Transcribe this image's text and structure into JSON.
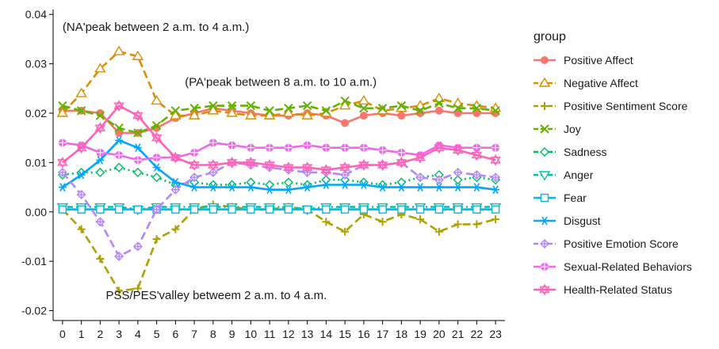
{
  "chart_data": {
    "type": "line",
    "title": "",
    "xlabel": "",
    "ylabel": "",
    "x": [
      0,
      1,
      2,
      3,
      4,
      5,
      6,
      7,
      8,
      9,
      10,
      11,
      12,
      13,
      14,
      15,
      16,
      17,
      18,
      19,
      20,
      21,
      22,
      23
    ],
    "ylim": [
      -0.022,
      0.041
    ],
    "yticks": [
      -0.02,
      -0.01,
      0.0,
      0.01,
      0.02,
      0.03,
      0.04
    ],
    "ytick_labels": [
      "-0.02",
      "-0.01",
      "0.00",
      "0.01",
      "0.02",
      "0.03",
      "0.04"
    ],
    "grid": false,
    "legend_title": "group",
    "legend_position": "right",
    "series": [
      {
        "name": "Positive Affect",
        "color": "#F8766D",
        "marker": "circle",
        "dash": "solid",
        "values": [
          0.0205,
          0.0205,
          0.02,
          0.016,
          0.016,
          0.017,
          0.019,
          0.02,
          0.021,
          0.0205,
          0.02,
          0.0195,
          0.0195,
          0.02,
          0.0195,
          0.018,
          0.0195,
          0.02,
          0.0195,
          0.02,
          0.0205,
          0.02,
          0.02,
          0.02
        ]
      },
      {
        "name": "Negative Affect",
        "color": "#DB8E00",
        "marker": "triangle-up",
        "dash": "longdash",
        "values": [
          0.02,
          0.024,
          0.029,
          0.0325,
          0.0315,
          0.0225,
          0.0195,
          0.0195,
          0.0205,
          0.02,
          0.0195,
          0.0195,
          0.02,
          0.0195,
          0.02,
          0.0215,
          0.0225,
          0.0205,
          0.021,
          0.0215,
          0.023,
          0.022,
          0.0215,
          0.021
        ]
      },
      {
        "name": "Positive Sentiment Score",
        "color": "#AEA200",
        "marker": "plus",
        "dash": "longdash",
        "values": [
          0.0005,
          -0.0035,
          -0.0095,
          -0.016,
          -0.0155,
          -0.0055,
          -0.0035,
          0.0005,
          0.0015,
          0.001,
          0.0005,
          0.0005,
          0.001,
          0.0005,
          -0.002,
          -0.004,
          -0.0005,
          -0.002,
          -0.0005,
          -0.0015,
          -0.004,
          -0.0025,
          -0.0025,
          -0.0015
        ]
      },
      {
        "name": "Joy",
        "color": "#64B200",
        "marker": "x",
        "dash": "longdash",
        "values": [
          0.0215,
          0.0205,
          0.0195,
          0.017,
          0.016,
          0.0175,
          0.0205,
          0.021,
          0.0215,
          0.0215,
          0.0215,
          0.0205,
          0.021,
          0.0215,
          0.0205,
          0.0225,
          0.021,
          0.021,
          0.0215,
          0.0205,
          0.022,
          0.021,
          0.021,
          0.0205
        ]
      },
      {
        "name": "Sadness",
        "color": "#00BD5C",
        "marker": "diamond",
        "dash": "dotted",
        "values": [
          0.0075,
          0.008,
          0.008,
          0.009,
          0.008,
          0.007,
          0.0055,
          0.006,
          0.0055,
          0.0055,
          0.006,
          0.0055,
          0.006,
          0.0055,
          0.0065,
          0.0065,
          0.006,
          0.0055,
          0.006,
          0.007,
          0.0075,
          0.0065,
          0.007,
          0.0065
        ]
      },
      {
        "name": "Anger",
        "color": "#00C1A7",
        "marker": "triangle-down",
        "dash": "dotdash",
        "values": [
          0.001,
          0.001,
          0.001,
          0.001,
          0.0005,
          0.001,
          0.001,
          0.001,
          0.001,
          0.001,
          0.001,
          0.001,
          0.001,
          0.0005,
          0.001,
          0.001,
          0.001,
          0.001,
          0.001,
          0.001,
          0.001,
          0.001,
          0.001,
          0.001
        ]
      },
      {
        "name": "Fear",
        "color": "#00BADE",
        "marker": "square",
        "dash": "solid",
        "values": [
          0.0005,
          0.0005,
          0.0005,
          0.0005,
          0.0005,
          0.0005,
          0.0005,
          0.0005,
          0.0005,
          0.0005,
          0.0005,
          0.0005,
          0.0005,
          0.0005,
          0.0005,
          0.0005,
          0.0005,
          0.0005,
          0.0005,
          0.0005,
          0.0005,
          0.0005,
          0.0005,
          0.0005
        ]
      },
      {
        "name": "Disgust",
        "color": "#00A6FF",
        "marker": "asterisk",
        "dash": "solid",
        "values": [
          0.005,
          0.0075,
          0.0105,
          0.0145,
          0.013,
          0.009,
          0.006,
          0.005,
          0.005,
          0.005,
          0.005,
          0.0045,
          0.0045,
          0.005,
          0.0055,
          0.0055,
          0.0055,
          0.005,
          0.005,
          0.005,
          0.005,
          0.005,
          0.005,
          0.0045
        ]
      },
      {
        "name": "Positive Emotion Score",
        "color": "#B385FF",
        "marker": "diamond-plus",
        "dash": "longdash",
        "values": [
          0.008,
          0.0035,
          -0.002,
          -0.009,
          -0.007,
          0.0005,
          0.0045,
          0.007,
          0.008,
          0.01,
          0.0095,
          0.009,
          0.0085,
          0.008,
          0.008,
          0.0075,
          0.0095,
          0.0095,
          0.01,
          0.007,
          0.0065,
          0.008,
          0.0075,
          0.007
        ]
      },
      {
        "name": "Sexual-Related Behaviors",
        "color": "#EF67EB",
        "marker": "circle-plus",
        "dash": "solid",
        "values": [
          0.014,
          0.0135,
          0.012,
          0.0115,
          0.0105,
          0.011,
          0.011,
          0.012,
          0.014,
          0.0135,
          0.013,
          0.013,
          0.013,
          0.0135,
          0.013,
          0.013,
          0.013,
          0.0125,
          0.012,
          0.0115,
          0.0135,
          0.013,
          0.013,
          0.013
        ]
      },
      {
        "name": "Health-Related Status",
        "color": "#FF63B6",
        "marker": "star-triangle",
        "dash": "solid",
        "values": [
          0.01,
          0.013,
          0.017,
          0.0215,
          0.0195,
          0.015,
          0.011,
          0.0095,
          0.0095,
          0.01,
          0.01,
          0.0095,
          0.009,
          0.009,
          0.0085,
          0.009,
          0.0095,
          0.0095,
          0.01,
          0.011,
          0.013,
          0.0125,
          0.0115,
          0.0105
        ]
      }
    ],
    "annotations": [
      {
        "text": "(NA'peak between 2 a.m. to 4 a.m.)",
        "x": 0.0,
        "y": 0.0367
      },
      {
        "text": "(PA'peak between 8 a.m. to 10 a.m.)",
        "x": 6.5,
        "y": 0.0255
      },
      {
        "text": "PSS/PES'valley betweem 2 a.m. to 4 a.m.",
        "x": 2.3,
        "y": -0.0177
      }
    ]
  }
}
